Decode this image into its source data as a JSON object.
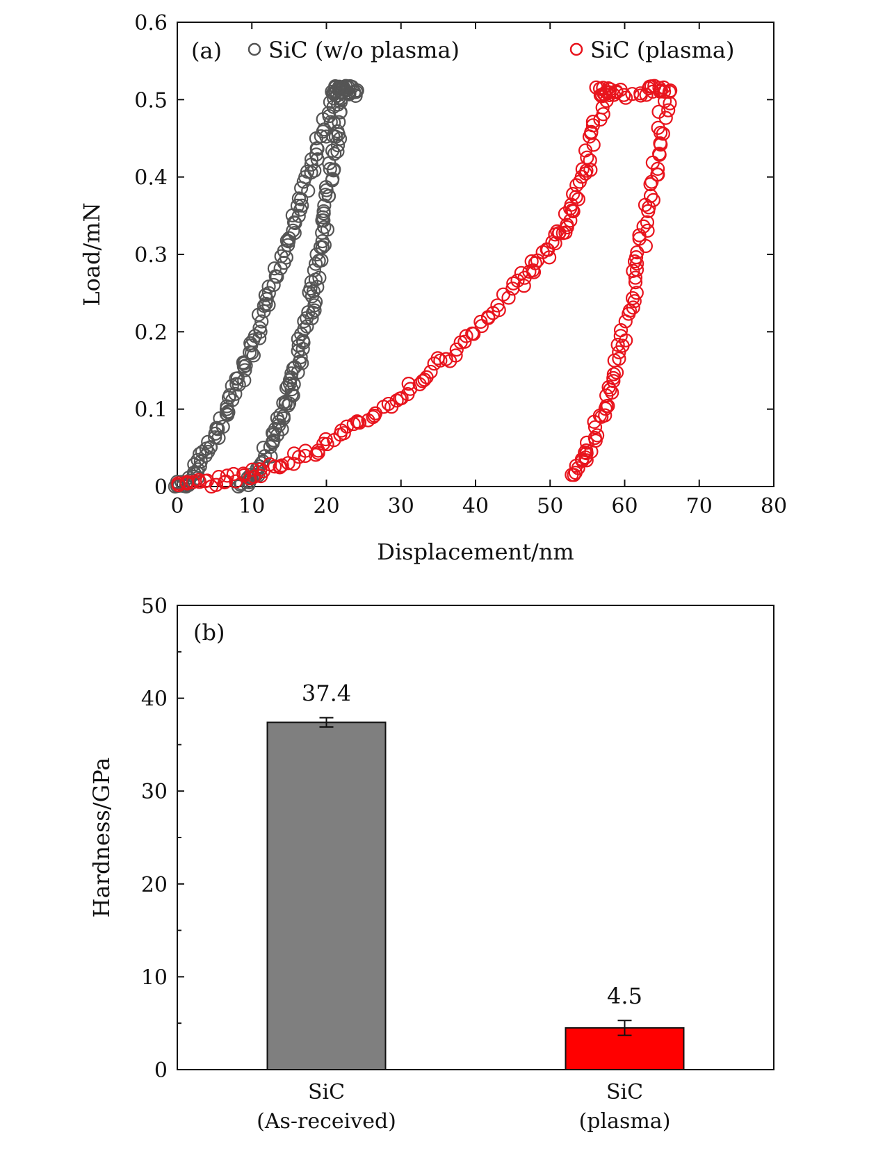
{
  "chart_data": [
    {
      "panel": "(a)",
      "type": "scatter",
      "xlabel": "Displacement/nm",
      "ylabel": "Load/mN",
      "xlim": [
        0,
        80
      ],
      "ylim": [
        0,
        0.6
      ],
      "xticks": [
        0,
        10,
        20,
        30,
        40,
        50,
        60,
        70,
        80
      ],
      "yticks": [
        0,
        0.1,
        0.2,
        0.3,
        0.4,
        0.5,
        0.6
      ],
      "xtick_labels": [
        "0",
        "10",
        "20",
        "30",
        "40",
        "50",
        "60",
        "70",
        "80"
      ],
      "ytick_labels": [
        "0",
        "0.1",
        "0.2",
        "0.3",
        "0.4",
        "0.5",
        "0.6"
      ],
      "legend_position": "top",
      "series": [
        {
          "name": "SiC (w/o plasma)",
          "color": "#555555",
          "marker": "open-circle",
          "loading": [
            [
              0,
              0
            ],
            [
              1,
              0.003
            ],
            [
              2,
              0.012
            ],
            [
              3,
              0.028
            ],
            [
              4,
              0.046
            ],
            [
              5,
              0.065
            ],
            [
              6,
              0.085
            ],
            [
              7,
              0.105
            ],
            [
              8,
              0.128
            ],
            [
              9,
              0.152
            ],
            [
              10,
              0.178
            ],
            [
              11,
              0.205
            ],
            [
              12,
              0.233
            ],
            [
              13,
              0.262
            ],
            [
              14,
              0.292
            ],
            [
              15,
              0.322
            ],
            [
              16,
              0.352
            ],
            [
              17,
              0.382
            ],
            [
              18,
              0.412
            ],
            [
              19,
              0.442
            ],
            [
              20,
              0.472
            ],
            [
              21,
              0.5
            ],
            [
              22,
              0.51
            ]
          ],
          "hold": [
            [
              21,
              0.512
            ],
            [
              21.5,
              0.515
            ],
            [
              22,
              0.514
            ],
            [
              22.5,
              0.513
            ],
            [
              23,
              0.512
            ],
            [
              23.5,
              0.511
            ],
            [
              24,
              0.51
            ]
          ],
          "unloading": [
            [
              22,
              0.505
            ],
            [
              21.6,
              0.47
            ],
            [
              21.2,
              0.44
            ],
            [
              20.8,
              0.41
            ],
            [
              20.4,
              0.38
            ],
            [
              20,
              0.35
            ],
            [
              19.5,
              0.32
            ],
            [
              19,
              0.29
            ],
            [
              18.5,
              0.26
            ],
            [
              18,
              0.235
            ],
            [
              17.4,
              0.21
            ],
            [
              16.8,
              0.185
            ],
            [
              16.2,
              0.16
            ],
            [
              15.6,
              0.14
            ],
            [
              15,
              0.12
            ],
            [
              14.3,
              0.1
            ],
            [
              13.5,
              0.08
            ],
            [
              12.7,
              0.06
            ],
            [
              11.8,
              0.04
            ],
            [
              10.8,
              0.02
            ],
            [
              9.8,
              0.008
            ],
            [
              8.5,
              0.002
            ]
          ]
        },
        {
          "name": "SiC (plasma)",
          "color": "#e8141d",
          "marker": "open-circle",
          "loading": [
            [
              0,
              0
            ],
            [
              3,
              0.004
            ],
            [
              6,
              0.008
            ],
            [
              9,
              0.014
            ],
            [
              12,
              0.022
            ],
            [
              15,
              0.033
            ],
            [
              18,
              0.046
            ],
            [
              21,
              0.061
            ],
            [
              24,
              0.078
            ],
            [
              27,
              0.097
            ],
            [
              30,
              0.118
            ],
            [
              33,
              0.141
            ],
            [
              36,
              0.166
            ],
            [
              39,
              0.193
            ],
            [
              42,
              0.222
            ],
            [
              45,
              0.253
            ],
            [
              47,
              0.275
            ],
            [
              49,
              0.298
            ],
            [
              51,
              0.322
            ],
            [
              52,
              0.335
            ],
            [
              53,
              0.36
            ],
            [
              54,
              0.39
            ],
            [
              55,
              0.42
            ],
            [
              56,
              0.46
            ],
            [
              57,
              0.5
            ],
            [
              57.5,
              0.51
            ]
          ],
          "hold": [
            [
              56.5,
              0.51
            ],
            [
              57.5,
              0.512
            ],
            [
              58.5,
              0.508
            ],
            [
              60.3,
              0.505
            ],
            [
              63,
              0.512
            ],
            [
              64,
              0.516
            ],
            [
              65,
              0.514
            ],
            [
              66,
              0.51
            ]
          ],
          "unloading": [
            [
              65.5,
              0.5
            ],
            [
              64.8,
              0.46
            ],
            [
              64.2,
              0.42
            ],
            [
              63.5,
              0.38
            ],
            [
              62.8,
              0.34
            ],
            [
              62,
              0.3
            ],
            [
              61.2,
              0.26
            ],
            [
              60.3,
              0.22
            ],
            [
              59.4,
              0.18
            ],
            [
              58.4,
              0.14
            ],
            [
              57.4,
              0.11
            ],
            [
              56.4,
              0.08
            ],
            [
              55.3,
              0.05
            ],
            [
              54.2,
              0.03
            ],
            [
              53.2,
              0.015
            ]
          ]
        }
      ]
    },
    {
      "panel": "(b)",
      "type": "bar",
      "ylabel": "Hardness/GPa",
      "ylim": [
        0,
        50
      ],
      "yticks": [
        0,
        10,
        20,
        30,
        40,
        50
      ],
      "ytick_labels": [
        "0",
        "10",
        "20",
        "30",
        "40",
        "50"
      ],
      "categories": [
        {
          "line1": "SiC",
          "line2": "(As-received)"
        },
        {
          "line1": "SiC",
          "line2": "(plasma)"
        }
      ],
      "values": [
        37.4,
        4.5
      ],
      "value_labels": [
        "37.4",
        "4.5"
      ],
      "errors": [
        0.5,
        0.8
      ],
      "colors": [
        "#7f7f7f",
        "#ff0000"
      ]
    }
  ]
}
